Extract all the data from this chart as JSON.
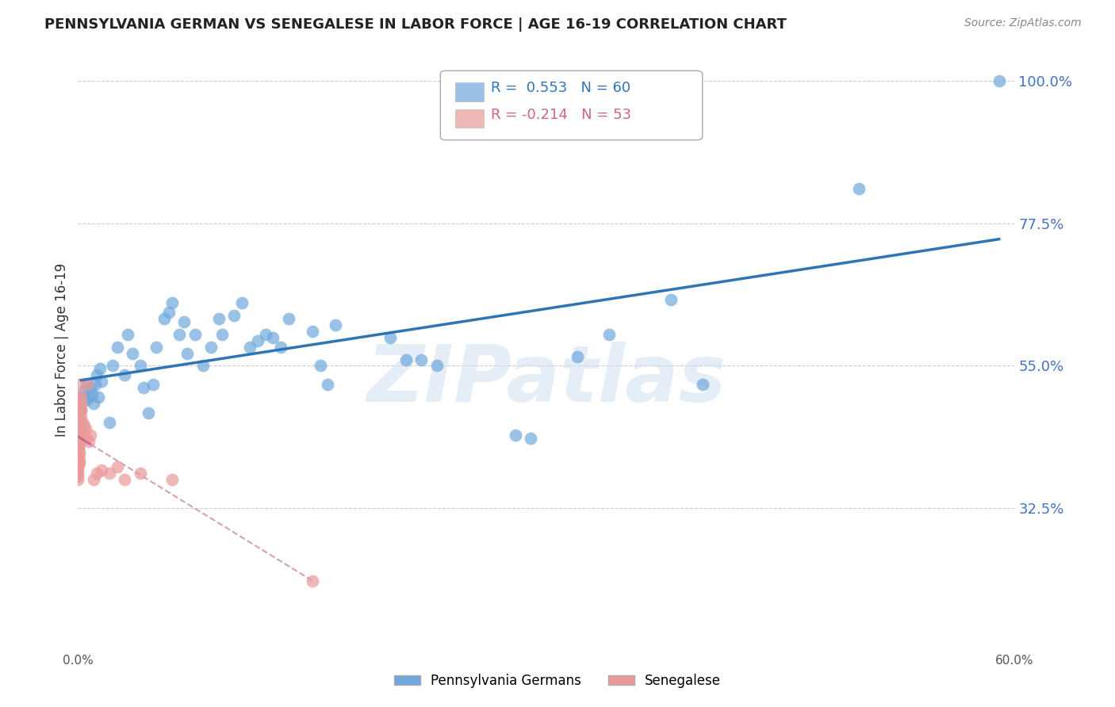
{
  "title": "PENNSYLVANIA GERMAN VS SENEGALESE IN LABOR FORCE | AGE 16-19 CORRELATION CHART",
  "source": "Source: ZipAtlas.com",
  "ylabel": "In Labor Force | Age 16-19",
  "x_min": 0.0,
  "x_max": 0.6,
  "y_min": 0.1,
  "y_max": 1.05,
  "x_ticks": [
    0.0,
    0.1,
    0.2,
    0.3,
    0.4,
    0.5,
    0.6
  ],
  "x_tick_labels": [
    "0.0%",
    "",
    "",
    "",
    "",
    "",
    "60.0%"
  ],
  "y_ticks": [
    0.325,
    0.55,
    0.775,
    1.0
  ],
  "y_tick_labels": [
    "32.5%",
    "55.0%",
    "77.5%",
    "100.0%"
  ],
  "blue_color": "#6fa8dc",
  "pink_color": "#ea9999",
  "trendline_blue": "#2e75b6",
  "trendline_pink": "#c9648a",
  "trendline_pink_dashed": "#d3a0b8",
  "R_blue": 0.553,
  "N_blue": 60,
  "R_pink": -0.214,
  "N_pink": 53,
  "watermark": "ZIPatlas",
  "blue_points": [
    [
      0.002,
      0.48
    ],
    [
      0.003,
      0.5
    ],
    [
      0.004,
      0.51
    ],
    [
      0.005,
      0.495
    ],
    [
      0.006,
      0.52
    ],
    [
      0.007,
      0.5
    ],
    [
      0.008,
      0.515
    ],
    [
      0.009,
      0.505
    ],
    [
      0.01,
      0.49
    ],
    [
      0.011,
      0.52
    ],
    [
      0.012,
      0.535
    ],
    [
      0.013,
      0.5
    ],
    [
      0.014,
      0.545
    ],
    [
      0.015,
      0.525
    ],
    [
      0.02,
      0.46
    ],
    [
      0.022,
      0.55
    ],
    [
      0.025,
      0.58
    ],
    [
      0.03,
      0.535
    ],
    [
      0.032,
      0.6
    ],
    [
      0.035,
      0.57
    ],
    [
      0.04,
      0.55
    ],
    [
      0.042,
      0.515
    ],
    [
      0.045,
      0.475
    ],
    [
      0.048,
      0.52
    ],
    [
      0.05,
      0.58
    ],
    [
      0.055,
      0.625
    ],
    [
      0.058,
      0.635
    ],
    [
      0.06,
      0.65
    ],
    [
      0.065,
      0.6
    ],
    [
      0.068,
      0.62
    ],
    [
      0.07,
      0.57
    ],
    [
      0.075,
      0.6
    ],
    [
      0.08,
      0.55
    ],
    [
      0.085,
      0.58
    ],
    [
      0.09,
      0.625
    ],
    [
      0.092,
      0.6
    ],
    [
      0.1,
      0.63
    ],
    [
      0.105,
      0.65
    ],
    [
      0.11,
      0.58
    ],
    [
      0.115,
      0.59
    ],
    [
      0.12,
      0.6
    ],
    [
      0.125,
      0.595
    ],
    [
      0.13,
      0.58
    ],
    [
      0.135,
      0.625
    ],
    [
      0.15,
      0.605
    ],
    [
      0.155,
      0.55
    ],
    [
      0.16,
      0.52
    ],
    [
      0.165,
      0.615
    ],
    [
      0.2,
      0.595
    ],
    [
      0.21,
      0.56
    ],
    [
      0.22,
      0.56
    ],
    [
      0.23,
      0.55
    ],
    [
      0.28,
      0.44
    ],
    [
      0.29,
      0.435
    ],
    [
      0.32,
      0.565
    ],
    [
      0.34,
      0.6
    ],
    [
      0.38,
      0.655
    ],
    [
      0.4,
      0.52
    ],
    [
      0.5,
      0.83
    ],
    [
      0.59,
      1.0
    ]
  ],
  "pink_points": [
    [
      0.0,
      0.465
    ],
    [
      0.0,
      0.46
    ],
    [
      0.0,
      0.455
    ],
    [
      0.0,
      0.45
    ],
    [
      0.0,
      0.445
    ],
    [
      0.0,
      0.44
    ],
    [
      0.0,
      0.435
    ],
    [
      0.0,
      0.43
    ],
    [
      0.0,
      0.425
    ],
    [
      0.0,
      0.42
    ],
    [
      0.0,
      0.415
    ],
    [
      0.0,
      0.41
    ],
    [
      0.0,
      0.4
    ],
    [
      0.0,
      0.395
    ],
    [
      0.0,
      0.39
    ],
    [
      0.0,
      0.385
    ],
    [
      0.0,
      0.38
    ],
    [
      0.0,
      0.375
    ],
    [
      0.0,
      0.37
    ],
    [
      0.001,
      0.52
    ],
    [
      0.001,
      0.5
    ],
    [
      0.001,
      0.485
    ],
    [
      0.001,
      0.475
    ],
    [
      0.001,
      0.47
    ],
    [
      0.001,
      0.455
    ],
    [
      0.001,
      0.445
    ],
    [
      0.001,
      0.44
    ],
    [
      0.001,
      0.43
    ],
    [
      0.001,
      0.425
    ],
    [
      0.001,
      0.415
    ],
    [
      0.001,
      0.41
    ],
    [
      0.001,
      0.4
    ],
    [
      0.001,
      0.395
    ],
    [
      0.002,
      0.5
    ],
    [
      0.002,
      0.49
    ],
    [
      0.002,
      0.48
    ],
    [
      0.002,
      0.47
    ],
    [
      0.003,
      0.46
    ],
    [
      0.004,
      0.455
    ],
    [
      0.005,
      0.45
    ],
    [
      0.005,
      0.435
    ],
    [
      0.006,
      0.52
    ],
    [
      0.007,
      0.43
    ],
    [
      0.008,
      0.44
    ],
    [
      0.01,
      0.37
    ],
    [
      0.012,
      0.38
    ],
    [
      0.015,
      0.385
    ],
    [
      0.02,
      0.38
    ],
    [
      0.025,
      0.39
    ],
    [
      0.03,
      0.37
    ],
    [
      0.04,
      0.38
    ],
    [
      0.06,
      0.37
    ],
    [
      0.15,
      0.21
    ]
  ]
}
